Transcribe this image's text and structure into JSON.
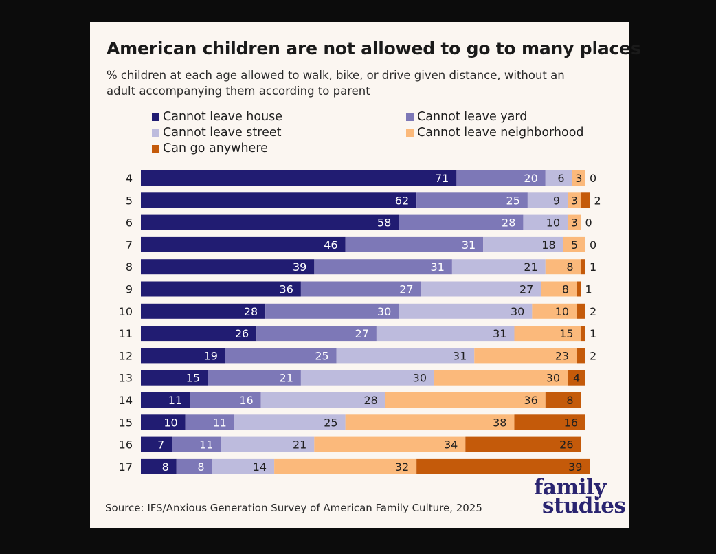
{
  "title": "American children are not allowed to go to many places",
  "subtitle": "% children at each age allowed to walk, bike, or drive given distance, without an adult accompanying them according to parent",
  "source": "Source: IFS/Anxious Generation Survey of American Family Culture, 2025",
  "logo": {
    "line1": "family",
    "line2": "studies"
  },
  "colors": {
    "background": "#fbf6f1",
    "series": [
      "#211c72",
      "#7d78b7",
      "#bdbbdd",
      "#fbb97b",
      "#c45a0a"
    ],
    "label_light": "#ffffff",
    "label_dark": "#1f1f1f"
  },
  "chart_data": {
    "type": "bar",
    "orientation": "horizontal",
    "stacked": true,
    "title": "American children are not allowed to go to many places",
    "subtitle": "% children at each age allowed to walk, bike, or drive given distance, without an adult accompanying them according to parent",
    "legend_position": "top",
    "grid": false,
    "xlim": [
      0,
      100
    ],
    "categories": [
      "4",
      "5",
      "6",
      "7",
      "8",
      "9",
      "10",
      "11",
      "12",
      "13",
      "14",
      "15",
      "16",
      "17"
    ],
    "series": [
      {
        "name": "Cannot leave house",
        "values": [
          71,
          62,
          58,
          46,
          39,
          36,
          28,
          26,
          19,
          15,
          11,
          10,
          7,
          8
        ]
      },
      {
        "name": "Cannot leave yard",
        "values": [
          20,
          25,
          28,
          31,
          31,
          27,
          30,
          27,
          25,
          21,
          16,
          11,
          11,
          8
        ]
      },
      {
        "name": "Cannot leave street",
        "values": [
          6,
          9,
          10,
          18,
          21,
          27,
          30,
          31,
          31,
          30,
          28,
          25,
          21,
          14
        ]
      },
      {
        "name": "Cannot leave neighborhood",
        "values": [
          3,
          3,
          3,
          5,
          8,
          8,
          10,
          15,
          23,
          30,
          36,
          38,
          34,
          32
        ]
      },
      {
        "name": "Can go anywhere",
        "values": [
          0,
          2,
          0,
          0,
          1,
          1,
          2,
          1,
          2,
          4,
          8,
          16,
          26,
          39
        ]
      }
    ]
  }
}
